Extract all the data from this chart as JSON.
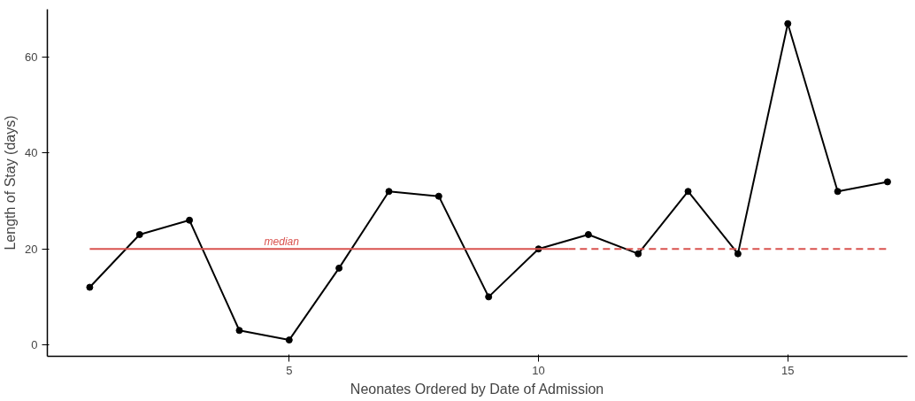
{
  "chart_data": {
    "type": "line",
    "xlabel": "Neonates Ordered by Date of Admission",
    "ylabel": "Length of Stay (days)",
    "x": [
      1,
      2,
      3,
      4,
      5,
      6,
      7,
      8,
      9,
      10,
      11,
      12,
      13,
      14,
      15,
      16,
      17
    ],
    "series": [
      {
        "color": "#000000",
        "marker": "circle",
        "line_style": "solid",
        "values": [
          12,
          23,
          26,
          3,
          1,
          16,
          32,
          31,
          10,
          20,
          23,
          19,
          32,
          19,
          67,
          32,
          34
        ]
      },
      {
        "color": "#d9534f",
        "marker": "none",
        "line_style": "solid",
        "x": [
          1,
          10.6
        ],
        "values": [
          20,
          20
        ]
      },
      {
        "color": "#d9534f",
        "marker": "none",
        "line_style": "dashed",
        "x": [
          10.6,
          17
        ],
        "values": [
          20,
          20
        ]
      }
    ],
    "annotations": [
      {
        "text": "median",
        "x": 4.5,
        "y": 20
      }
    ],
    "xlim": [
      0.15,
      17.4
    ],
    "ylim": [
      -2.4,
      70
    ],
    "xticks": [
      5,
      10,
      15
    ],
    "yticks": [
      0,
      20,
      40,
      60
    ],
    "grid": false
  }
}
